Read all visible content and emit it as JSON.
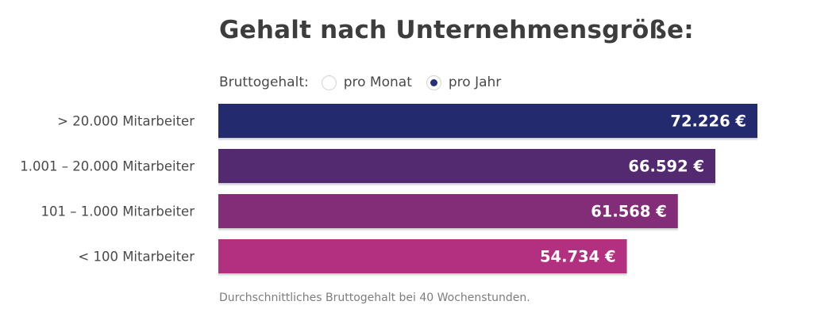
{
  "title": "Gehalt nach Unternehmensgröße:",
  "toggle": {
    "label": "Bruttogehalt:",
    "options": [
      {
        "label": "pro Monat",
        "selected": false
      },
      {
        "label": "pro Jahr",
        "selected": true
      }
    ]
  },
  "footnote": "Durchschnittliches Bruttogehalt bei 40 Wochenstunden.",
  "colors": {
    "bar_1": "#232a6e",
    "bar_2": "#53296f",
    "bar_3": "#832d79",
    "bar_4": "#b32f80",
    "radio_selected": "#26307a"
  },
  "chart_data": {
    "type": "bar",
    "orientation": "horizontal",
    "title": "Gehalt nach Unternehmensgröße:",
    "xlabel": "",
    "ylabel": "",
    "unit": "€",
    "categories": [
      "> 20.000 Mitarbeiter",
      "1.001 – 20.000 Mitarbeiter",
      "101 – 1.000 Mitarbeiter",
      "< 100 Mitarbeiter"
    ],
    "values": [
      72226,
      66592,
      61568,
      54734
    ],
    "value_labels": [
      "72.226 €",
      "66.592 €",
      "61.568 €",
      "54.734 €"
    ],
    "colors": [
      "#232a6e",
      "#53296f",
      "#832d79",
      "#b32f80"
    ],
    "grid": false,
    "legend": "none"
  }
}
